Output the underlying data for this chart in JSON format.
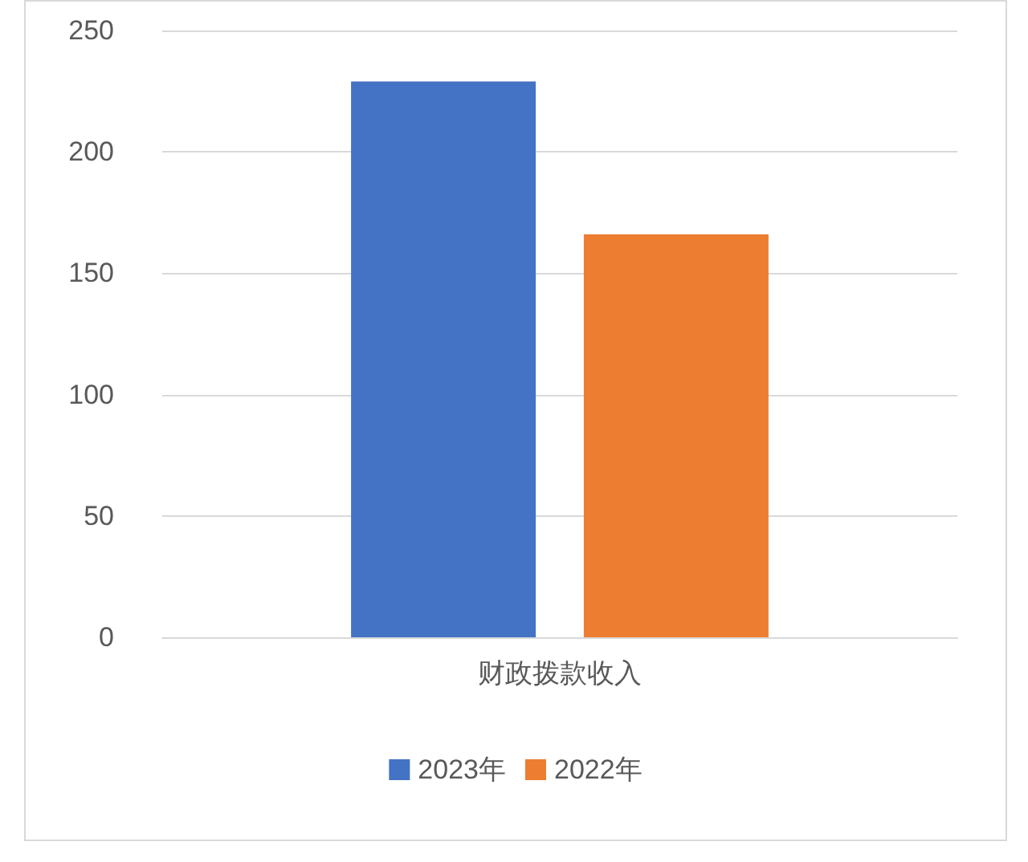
{
  "chart_data": {
    "type": "bar",
    "categories": [
      "财政拨款收入"
    ],
    "series": [
      {
        "name": "2023年",
        "color": "#4472c4",
        "values": [
          229
        ]
      },
      {
        "name": "2022年",
        "color": "#ed7d31",
        "values": [
          166
        ]
      }
    ],
    "ylim": [
      0,
      250
    ],
    "yticks": [
      0,
      50,
      100,
      150,
      200,
      250
    ],
    "grid": "y",
    "legend": "bottom"
  }
}
